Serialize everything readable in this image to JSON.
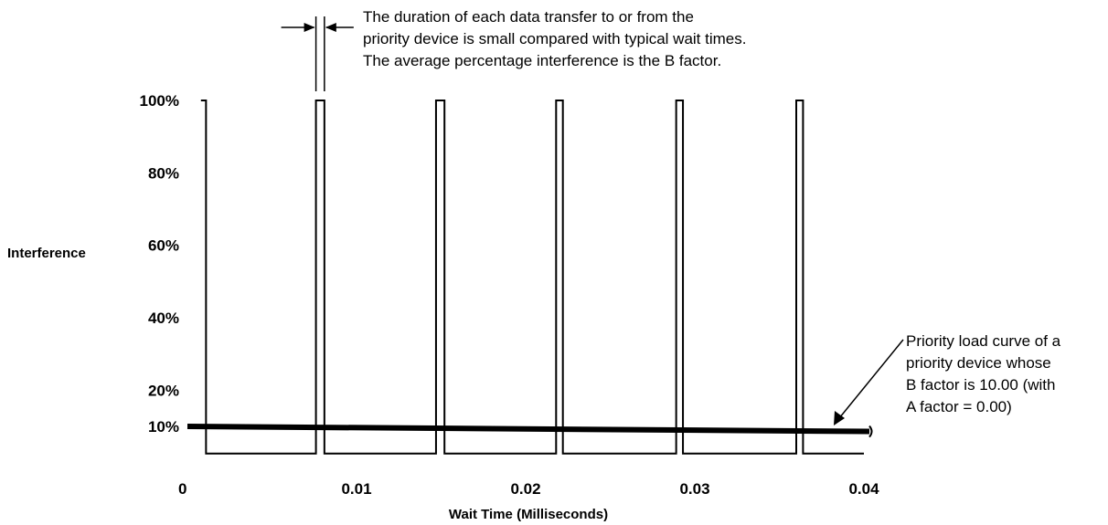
{
  "chart_data": {
    "type": "line",
    "title": "",
    "xlabel": "Wait Time (Milliseconds)",
    "ylabel": "Interference",
    "xlim": [
      0,
      0.04
    ],
    "ylim": [
      0,
      100
    ],
    "x_ticks": [
      "0",
      "0.01",
      "0.02",
      "0.03",
      "0.04"
    ],
    "x_tick_values": [
      0,
      0.01,
      0.02,
      0.03,
      0.04
    ],
    "y_ticks": [
      "10%",
      "20%",
      "40%",
      "60%",
      "80%",
      "100%"
    ],
    "y_tick_values": [
      10,
      20,
      40,
      60,
      80,
      100
    ],
    "grid": false,
    "series": [
      {
        "style": "pulse-train",
        "baseline": 2.5,
        "peak": 100,
        "pulses": [
          {
            "start": 0.0008,
            "end": 0.0011
          },
          {
            "start": 0.0076,
            "end": 0.0081
          },
          {
            "start": 0.0147,
            "end": 0.0152
          },
          {
            "start": 0.0218,
            "end": 0.0222
          },
          {
            "start": 0.0289,
            "end": 0.0293
          },
          {
            "start": 0.036,
            "end": 0.0364
          }
        ]
      },
      {
        "style": "thick-line",
        "x": [
          0,
          0.04
        ],
        "y": [
          10,
          8.6
        ]
      }
    ],
    "annotations": [
      {
        "id": "duration",
        "lines": [
          "The duration of each data transfer to or from the",
          "priority device is small compared with typical wait times.",
          "The average percentage interference is the B factor."
        ]
      },
      {
        "id": "curve",
        "lines": [
          "Priority load curve of a",
          "priority device whose",
          "B factor is 10.00 (with",
          "A factor = 0.00)"
        ]
      }
    ]
  }
}
